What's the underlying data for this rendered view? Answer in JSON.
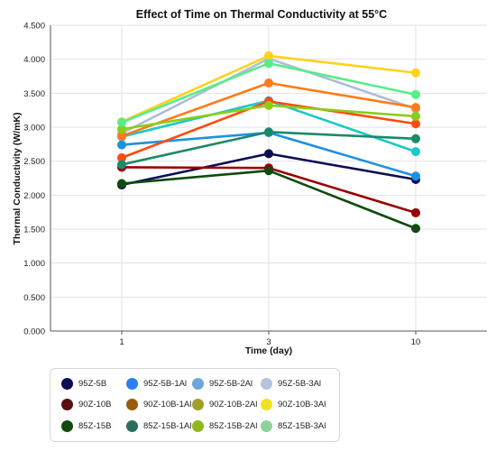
{
  "chart_data": {
    "type": "line",
    "title": "Effect of Time on Thermal Conductivity at 55°C",
    "xlabel": "Time (day)",
    "ylabel": "Thermal Conductivity (W/mK)",
    "categories": [
      "1",
      "3",
      "10"
    ],
    "ylim": [
      0,
      4.5
    ],
    "yticks": [
      "0.000",
      "0.500",
      "1.000",
      "1.500",
      "2.000",
      "2.500",
      "3.000",
      "3.500",
      "4.000",
      "4.500"
    ],
    "grid": true,
    "legend_position": "bottom",
    "series": [
      {
        "name": "95Z-5B",
        "color": "#0d0d55",
        "legend_color": "#0d0d55",
        "values": [
          2.15,
          2.61,
          2.23
        ]
      },
      {
        "name": "95Z-5B-1Al",
        "color": "#1e90e0",
        "legend_color": "#2b7ff0",
        "values": [
          2.74,
          2.92,
          2.28
        ]
      },
      {
        "name": "95Z-5B-2Al",
        "color": "#1cc8c8",
        "legend_color": "#6ea6d9",
        "values": [
          2.86,
          3.39,
          2.64
        ]
      },
      {
        "name": "95Z-5B-3Al",
        "color": "#b0bcd8",
        "legend_color": "#b6c2e0",
        "values": [
          2.91,
          4.01,
          3.27
        ]
      },
      {
        "name": "90Z-10B",
        "color": "#990000",
        "legend_color": "#5a1010",
        "values": [
          2.41,
          2.4,
          1.74
        ]
      },
      {
        "name": "90Z-10B-1Al",
        "color": "#ff7a18",
        "legend_color": "#9a5a10",
        "values": [
          2.87,
          3.65,
          3.29
        ]
      },
      {
        "name": "90Z-10B-2Al",
        "color": "#ff4a10",
        "legend_color": "#a0a028",
        "values": [
          2.55,
          3.38,
          3.05
        ]
      },
      {
        "name": "90Z-10B-3Al",
        "color": "#ffd21a",
        "legend_color": "#f0e020",
        "values": [
          3.08,
          4.05,
          3.8
        ]
      },
      {
        "name": "85Z-15B",
        "color": "#0f4a0f",
        "legend_color": "#0f4a0f",
        "values": [
          2.17,
          2.36,
          1.51
        ]
      },
      {
        "name": "85Z-15B-1Al",
        "color": "#1a8a6a",
        "legend_color": "#2e6e5e",
        "values": [
          2.45,
          2.93,
          2.83
        ]
      },
      {
        "name": "85Z-15B-2Al",
        "color": "#8ccc1a",
        "legend_color": "#90b818",
        "values": [
          2.97,
          3.32,
          3.16
        ]
      },
      {
        "name": "85Z-15B-3Al",
        "color": "#55ee88",
        "legend_color": "#8cd39a",
        "values": [
          3.07,
          3.94,
          3.48
        ]
      }
    ]
  }
}
